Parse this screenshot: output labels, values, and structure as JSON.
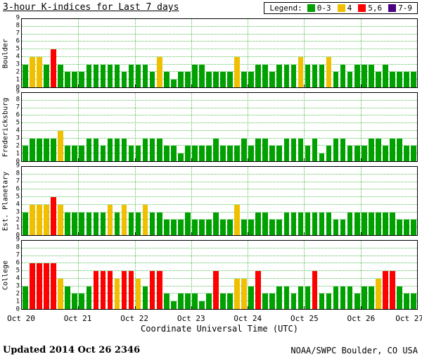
{
  "header": {
    "title": "3-hour K-indices for Last 7 days"
  },
  "legend": {
    "label": "Legend:",
    "items": [
      {
        "label": "0-3",
        "color": "#00A000"
      },
      {
        "label": "4",
        "color": "#F0C000"
      },
      {
        "label": "5,6",
        "color": "#FF0000"
      },
      {
        "label": "7-9",
        "color": "#4B0082"
      }
    ]
  },
  "footer": {
    "updated": "Updated 2014 Oct 26 2346",
    "source": "NOAA/SWPC Boulder, CO USA"
  },
  "chart_data": {
    "type": "bar",
    "title": "3-hour K-indices for Last 7 days",
    "xlabel": "Coordinate Universal Time (UTC)",
    "ylim": [
      0,
      9
    ],
    "y_ticks": [
      0,
      1,
      2,
      3,
      4,
      5,
      6,
      7,
      8,
      9
    ],
    "x_ticks": [
      "Oct 20",
      "Oct 21",
      "Oct 22",
      "Oct 23",
      "Oct 24",
      "Oct 25",
      "Oct 26",
      "Oct 27"
    ],
    "bars_per_day": 8,
    "grid": "green-dotted",
    "colors": {
      "green": "#00A000",
      "yellow": "#F0C000",
      "red": "#FF0000",
      "purple": "#4B0082"
    },
    "color_scale": {
      "0-3": "green",
      "4": "yellow",
      "5-6": "red",
      "7-9": "purple"
    },
    "panels": [
      {
        "station": "Boulder",
        "values": [
          3,
          4,
          4,
          3,
          5,
          3,
          2,
          2,
          2,
          3,
          3,
          3,
          3,
          3,
          2,
          3,
          3,
          3,
          2,
          4,
          2,
          1,
          2,
          2,
          3,
          3,
          2,
          2,
          2,
          2,
          4,
          2,
          2,
          3,
          3,
          2,
          3,
          3,
          3,
          4,
          3,
          3,
          3,
          4,
          2,
          3,
          2,
          3,
          3,
          3,
          2,
          3,
          2,
          2,
          2,
          2
        ]
      },
      {
        "station": "Fredericksburg",
        "values": [
          2,
          3,
          3,
          3,
          3,
          4,
          2,
          2,
          2,
          3,
          3,
          2,
          3,
          3,
          3,
          2,
          2,
          3,
          3,
          3,
          2,
          2,
          1,
          2,
          2,
          2,
          2,
          3,
          2,
          2,
          2,
          3,
          2,
          3,
          3,
          2,
          2,
          3,
          3,
          3,
          2,
          3,
          1,
          2,
          3,
          3,
          2,
          2,
          2,
          3,
          3,
          2,
          3,
          3,
          2,
          2
        ]
      },
      {
        "station": "Est. Planetary",
        "values": [
          3,
          4,
          4,
          4,
          5,
          4,
          3,
          3,
          3,
          3,
          3,
          3,
          4,
          3,
          4,
          3,
          3,
          4,
          3,
          3,
          2,
          2,
          2,
          3,
          2,
          2,
          2,
          3,
          2,
          2,
          4,
          2,
          2,
          3,
          3,
          2,
          2,
          3,
          3,
          3,
          3,
          3,
          3,
          3,
          2,
          2,
          3,
          3,
          3,
          3,
          3,
          3,
          3,
          2,
          2,
          2
        ]
      },
      {
        "station": "College",
        "values": [
          3,
          6,
          6,
          6,
          6,
          4,
          3,
          2,
          2,
          3,
          5,
          5,
          5,
          4,
          5,
          5,
          4,
          3,
          5,
          5,
          2,
          1,
          2,
          2,
          2,
          1,
          2,
          5,
          2,
          2,
          4,
          4,
          3,
          5,
          2,
          2,
          3,
          3,
          2,
          3,
          3,
          5,
          2,
          2,
          3,
          3,
          3,
          2,
          3,
          3,
          4,
          5,
          5,
          3,
          2,
          2
        ]
      }
    ]
  }
}
